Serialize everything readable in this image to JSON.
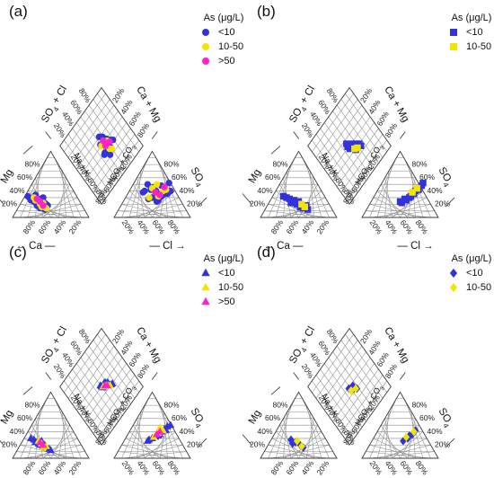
{
  "chart_data": [
    {
      "type": "scatter",
      "panel": "(a)",
      "marker": "circle",
      "legend": {
        "title": "As (μg/L)",
        "position": "top-right",
        "entries": [
          "<10",
          "10-50",
          ">50"
        ]
      },
      "series": [
        {
          "name": "<10",
          "color": "#3333dd",
          "points": [
            [
              24,
              72,
              50,
              30
            ],
            [
              22,
              70,
              60,
              35
            ],
            [
              18,
              68,
              55,
              40
            ],
            [
              26,
              76,
              45,
              28
            ],
            [
              28,
              74,
              62,
              32
            ],
            [
              20,
              66,
              48,
              42
            ],
            [
              30,
              78,
              58,
              26
            ],
            [
              16,
              60,
              52,
              46
            ],
            [
              14,
              64,
              66,
              44
            ],
            [
              24,
              62,
              70,
              36
            ],
            [
              22,
              58,
              74,
              40
            ],
            [
              20,
              56,
              44,
              50
            ],
            [
              32,
              80,
              56,
              24
            ],
            [
              18,
              54,
              62,
              48
            ],
            [
              26,
              66,
              38,
              38
            ],
            [
              34,
              70,
              50,
              30
            ],
            [
              28,
              64,
              64,
              34
            ],
            [
              12,
              58,
              72,
              52
            ],
            [
              30,
              60,
              40,
              40
            ]
          ]
        },
        {
          "name": "10-50",
          "color": "#f2e600",
          "points": [
            [
              26,
              70,
              58,
              32
            ],
            [
              20,
              64,
              64,
              40
            ],
            [
              16,
              62,
              50,
              44
            ],
            [
              30,
              72,
              46,
              30
            ],
            [
              22,
              60,
              68,
              42
            ],
            [
              14,
              56,
              56,
              50
            ]
          ]
        },
        {
          "name": ">50",
          "color": "#ff22cc",
          "points": [
            [
              28,
              68,
              60,
              34
            ],
            [
              18,
              60,
              66,
              46
            ],
            [
              24,
              64,
              54,
              38
            ]
          ]
        }
      ]
    },
    {
      "type": "scatter",
      "panel": "(b)",
      "marker": "square",
      "legend": {
        "title": "As (μg/L)",
        "position": "top-right",
        "entries": [
          "<10",
          "10-50"
        ]
      },
      "series": [
        {
          "name": "<10",
          "color": "#3333dd",
          "points": [
            [
              22,
              60,
              62,
              30
            ],
            [
              20,
              52,
              68,
              36
            ],
            [
              16,
              48,
              74,
              42
            ],
            [
              26,
              56,
              56,
              28
            ],
            [
              30,
              66,
              50,
              24
            ],
            [
              14,
              44,
              78,
              48
            ],
            [
              24,
              50,
              64,
              32
            ],
            [
              18,
              40,
              70,
              40
            ],
            [
              12,
              38,
              80,
              52
            ],
            [
              28,
              62,
              58,
              26
            ],
            [
              32,
              70,
              52,
              22
            ]
          ]
        },
        {
          "name": "10-50",
          "color": "#f2e600",
          "points": [
            [
              20,
              46,
              66,
              38
            ],
            [
              16,
              42,
              72,
              44
            ]
          ]
        }
      ]
    },
    {
      "type": "scatter",
      "panel": "(c)",
      "marker": "triangle",
      "legend": {
        "title": "As (μg/L)",
        "position": "top-right",
        "entries": [
          "<10",
          "10-50",
          ">50"
        ]
      },
      "series": [
        {
          "name": "<10",
          "color": "#3333dd",
          "points": [
            [
              20,
              64,
              56,
              34
            ],
            [
              18,
              60,
              62,
              40
            ],
            [
              24,
              70,
              50,
              30
            ],
            [
              16,
              56,
              66,
              44
            ],
            [
              22,
              66,
              60,
              36
            ],
            [
              28,
              72,
              46,
              28
            ],
            [
              14,
              52,
              70,
              48
            ],
            [
              26,
              62,
              54,
              32
            ],
            [
              20,
              58,
              68,
              42
            ],
            [
              30,
              76,
              44,
              26
            ],
            [
              12,
              50,
              74,
              50
            ],
            [
              24,
              68,
              58,
              34
            ]
          ]
        },
        {
          "name": "10-50",
          "color": "#f2e600",
          "points": [
            [
              22,
              62,
              58,
              38
            ],
            [
              18,
              56,
              64,
              42
            ],
            [
              26,
              66,
              52,
              32
            ],
            [
              16,
              60,
              60,
              46
            ]
          ]
        },
        {
          "name": ">50",
          "color": "#ff22cc",
          "points": [
            [
              20,
              60,
              60,
              40
            ],
            [
              24,
              64,
              56,
              36
            ]
          ]
        }
      ]
    },
    {
      "type": "scatter",
      "panel": "(d)",
      "marker": "diamond",
      "legend": {
        "title": "As (μg/L)",
        "position": "top-right",
        "entries": [
          "<10",
          "10-50"
        ]
      },
      "series": [
        {
          "name": "<10",
          "color": "#3333dd",
          "points": [
            [
              24,
              54,
              60,
              30
            ],
            [
              20,
              48,
              66,
              36
            ],
            [
              28,
              60,
              54,
              26
            ],
            [
              16,
              44,
              70,
              42
            ],
            [
              22,
              58,
              62,
              34
            ]
          ]
        },
        {
          "name": "10-50",
          "color": "#f2e600",
          "points": [
            [
              26,
              52,
              58,
              32
            ],
            [
              18,
              46,
              68,
              40
            ]
          ]
        }
      ]
    }
  ],
  "axes": {
    "ca": "Ca",
    "mg": "Mg",
    "cl": "Cl",
    "so4": "SO4",
    "na_k": "Na + K",
    "hco3_co3": "HCO3 + CO3",
    "so4_cl": "SO4 + Cl",
    "ca_mg": "Ca + Mg",
    "ticks": [
      "20%",
      "40%",
      "60%",
      "80%"
    ]
  }
}
